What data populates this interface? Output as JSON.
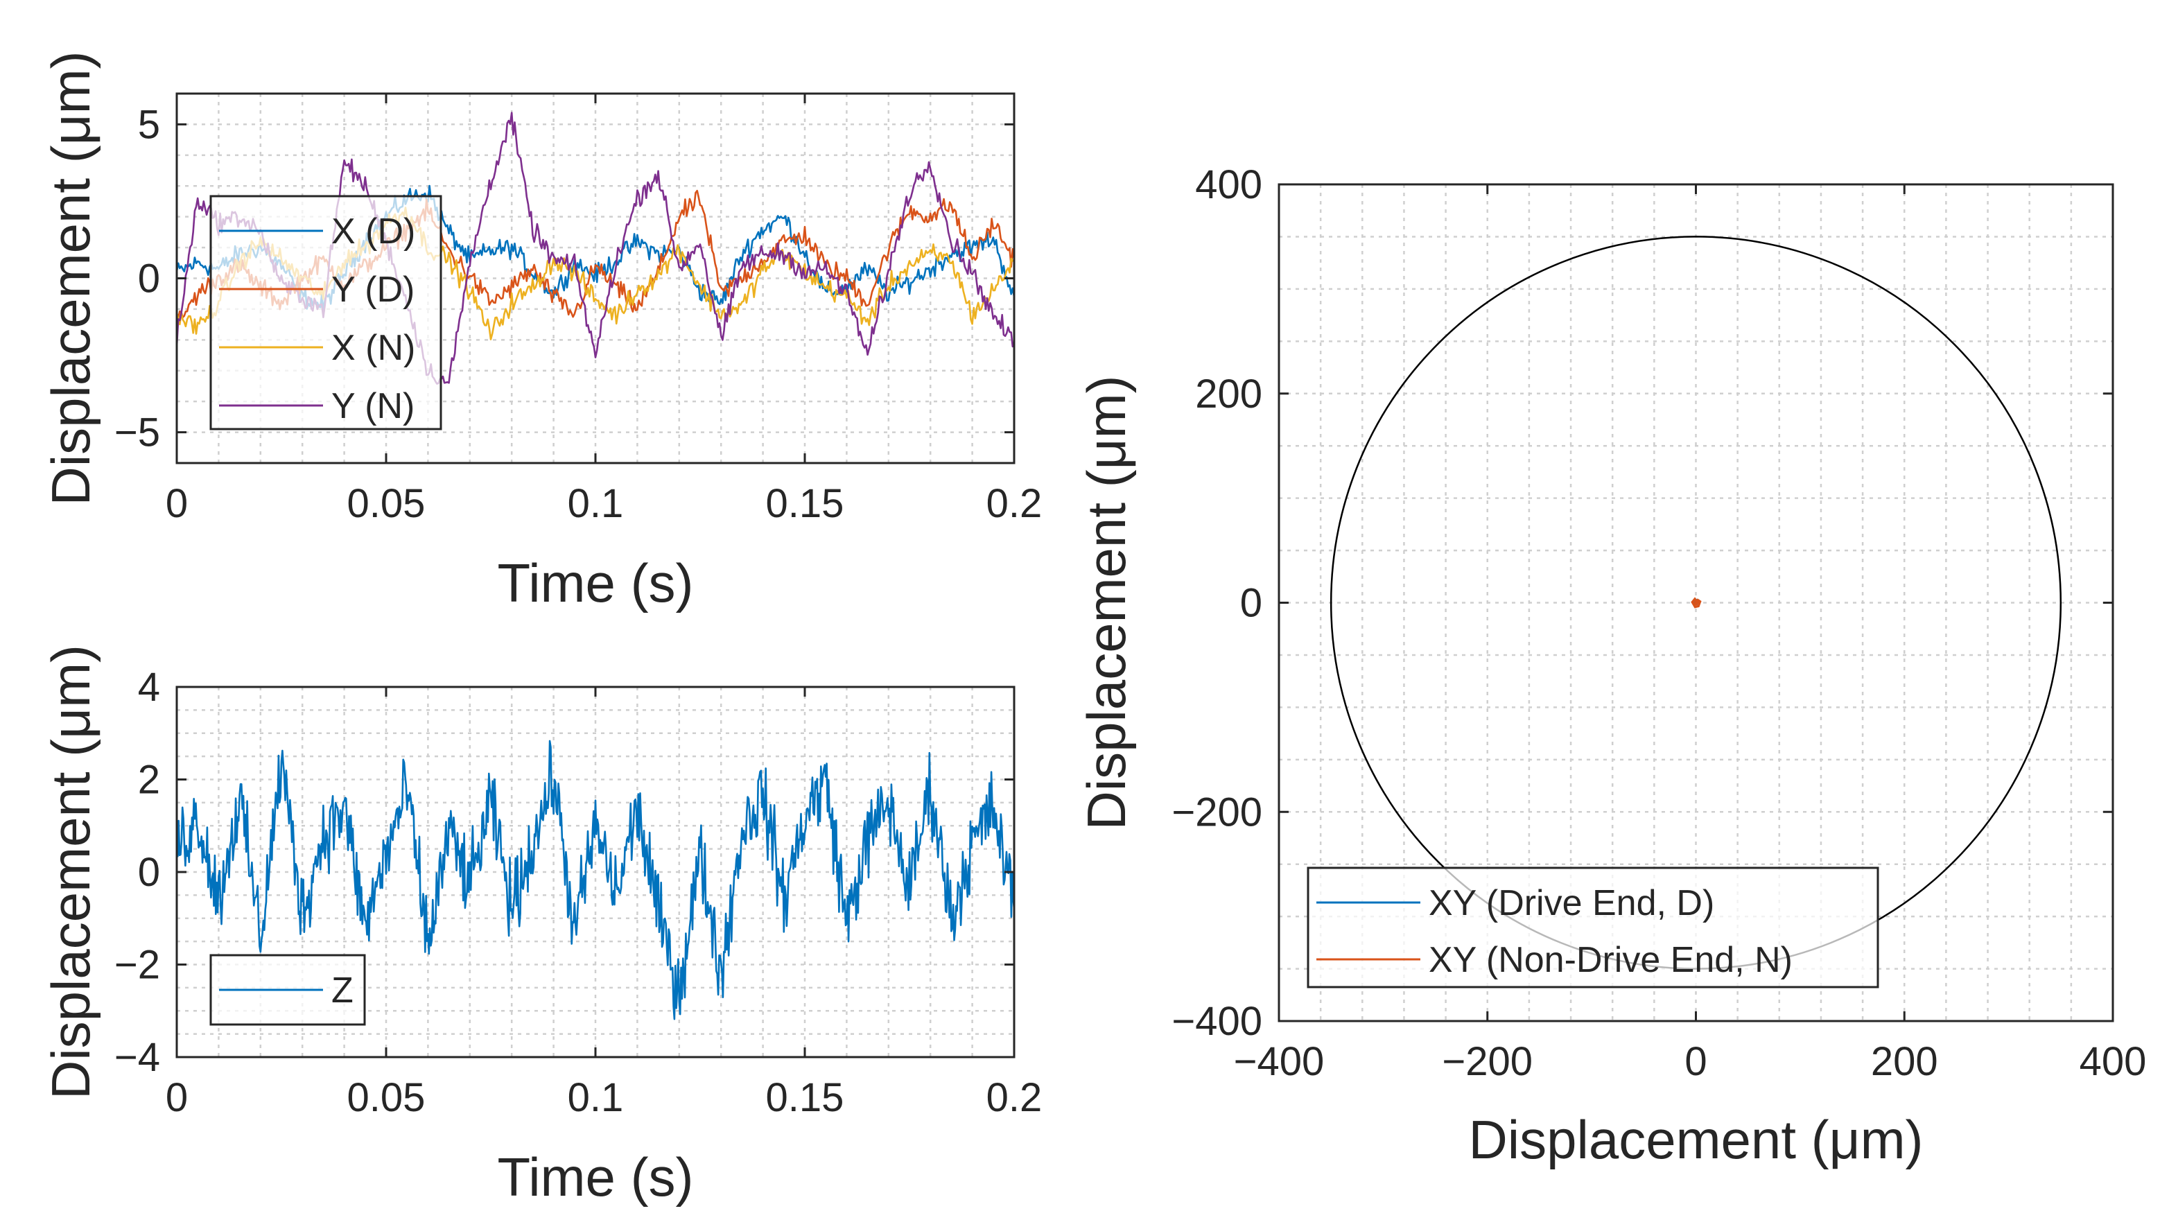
{
  "chart_data": [
    {
      "type": "line",
      "id": "radial-displacement",
      "xlabel": "Time (s)",
      "ylabel": "Displacement (μm)",
      "xlim": [
        0,
        0.2
      ],
      "ylim": [
        -6,
        6
      ],
      "xticks": [
        0,
        0.05,
        0.1,
        0.15,
        0.2
      ],
      "xticklabels": [
        "0",
        "0.05",
        "0.1",
        "0.15",
        "0.2"
      ],
      "yticks": [
        -5,
        0,
        5
      ],
      "yticklabels": [
        "−5",
        "0",
        "5"
      ],
      "grid": true,
      "legend_position": "top-left",
      "x": [
        0,
        0.005,
        0.01,
        0.015,
        0.02,
        0.025,
        0.03,
        0.035,
        0.04,
        0.045,
        0.05,
        0.055,
        0.06,
        0.065,
        0.07,
        0.075,
        0.08,
        0.085,
        0.09,
        0.095,
        0.1,
        0.105,
        0.11,
        0.115,
        0.12,
        0.125,
        0.13,
        0.135,
        0.14,
        0.145,
        0.15,
        0.155,
        0.16,
        0.165,
        0.17,
        0.175,
        0.18,
        0.185,
        0.19,
        0.195,
        0.2
      ],
      "series": [
        {
          "name": "X (D)",
          "color": "#0072BD",
          "values": [
            0.2,
            0.5,
            0.3,
            0.8,
            1.0,
            0.4,
            -0.6,
            -0.9,
            0.2,
            1.2,
            2.0,
            2.6,
            2.8,
            1.5,
            0.6,
            0.9,
            1.0,
            0.2,
            -0.5,
            0.5,
            0.1,
            0.6,
            1.2,
            0.8,
            0.9,
            -0.4,
            -0.8,
            0.8,
            1.6,
            2.0,
            0.8,
            -0.5,
            -0.3,
            0.3,
            -0.5,
            -0.1,
            0.3,
            0.8,
            1.0,
            1.3,
            -0.6
          ]
        },
        {
          "name": "Y (D)",
          "color": "#D95319",
          "values": [
            -1.5,
            -0.5,
            0.0,
            0.4,
            -0.3,
            -0.8,
            0.0,
            0.6,
            -0.2,
            0.4,
            1.0,
            1.6,
            2.2,
            0.9,
            0.1,
            -0.8,
            -0.3,
            0.3,
            -0.6,
            -1.2,
            0.4,
            -0.3,
            -1.0,
            0.2,
            2.0,
            2.6,
            -0.5,
            0.0,
            0.6,
            1.2,
            1.4,
            0.4,
            0.0,
            -0.8,
            1.0,
            2.2,
            2.0,
            2.4,
            0.6,
            1.8,
            0.6
          ]
        },
        {
          "name": "X (N)",
          "color": "#EDB120",
          "values": [
            -1.2,
            -1.6,
            -0.8,
            0.5,
            1.2,
            0.6,
            0.0,
            -0.6,
            0.6,
            1.0,
            1.8,
            2.2,
            1.0,
            0.6,
            -0.4,
            -1.8,
            -0.8,
            -0.3,
            0.6,
            0.2,
            -0.7,
            -1.2,
            -0.4,
            0.1,
            1.0,
            -0.3,
            -1.2,
            -0.9,
            0.3,
            0.8,
            0.2,
            -0.3,
            -0.6,
            -1.4,
            -0.2,
            0.4,
            0.8,
            0.6,
            -1.2,
            -0.4,
            0.6
          ]
        },
        {
          "name": "Y (N)",
          "color": "#7E2F8E",
          "values": [
            -2.0,
            2.6,
            1.8,
            2.0,
            1.5,
            -0.2,
            -0.6,
            -1.0,
            3.8,
            3.0,
            1.2,
            -0.8,
            -3.0,
            -3.4,
            0.5,
            3.2,
            5.2,
            1.6,
            0.6,
            0.4,
            -2.5,
            0.6,
            2.6,
            3.4,
            0.3,
            1.2,
            -2.0,
            0.4,
            0.8,
            0.8,
            0.2,
            0.3,
            -0.5,
            -2.5,
            0.2,
            2.8,
            3.8,
            1.2,
            0.2,
            -1.2,
            -2.1
          ]
        }
      ]
    },
    {
      "type": "line",
      "id": "axial-displacement",
      "xlabel": "Time (s)",
      "ylabel": "Displacement (μm)",
      "xlim": [
        0,
        0.2
      ],
      "ylim": [
        -4,
        4
      ],
      "xticks": [
        0,
        0.05,
        0.1,
        0.15,
        0.2
      ],
      "xticklabels": [
        "0",
        "0.05",
        "0.1",
        "0.15",
        "0.2"
      ],
      "yticks": [
        -4,
        -2,
        0,
        2,
        4
      ],
      "yticklabels": [
        "−4",
        "−2",
        "0",
        "2",
        "4"
      ],
      "grid": true,
      "legend_position": "bottom-left",
      "x": [
        0,
        0.005,
        0.01,
        0.015,
        0.02,
        0.025,
        0.03,
        0.035,
        0.04,
        0.045,
        0.05,
        0.055,
        0.06,
        0.065,
        0.07,
        0.075,
        0.08,
        0.085,
        0.09,
        0.095,
        0.1,
        0.105,
        0.11,
        0.115,
        0.12,
        0.125,
        0.13,
        0.135,
        0.14,
        0.145,
        0.15,
        0.155,
        0.16,
        0.165,
        0.17,
        0.175,
        0.18,
        0.185,
        0.19,
        0.195,
        0.2
      ],
      "series": [
        {
          "name": "Z",
          "color": "#0072BD",
          "values": [
            0.5,
            1.2,
            -0.6,
            1.6,
            -1.4,
            2.4,
            -0.9,
            0.8,
            1.4,
            -1.2,
            0.4,
            1.8,
            -1.6,
            0.9,
            -0.3,
            1.5,
            -0.8,
            0.6,
            2.1,
            -1.3,
            1.0,
            -0.5,
            1.4,
            -0.9,
            -2.6,
            0.4,
            -2.2,
            0.9,
            1.7,
            -0.6,
            1.2,
            2.0,
            -1.1,
            0.7,
            1.5,
            -0.4,
            1.9,
            -1.0,
            0.6,
            1.4,
            -0.8
          ]
        }
      ]
    },
    {
      "type": "line",
      "id": "orbit",
      "xlabel": "Displacement (μm)",
      "ylabel": "Displacement (μm)",
      "xlim": [
        -400,
        400
      ],
      "ylim": [
        -400,
        400
      ],
      "xticks": [
        -400,
        -200,
        0,
        200,
        400
      ],
      "xticklabels": [
        "−400",
        "−200",
        "0",
        "200",
        "400"
      ],
      "yticks": [
        -400,
        -200,
        0,
        200,
        400
      ],
      "yticklabels": [
        "−400",
        "−200",
        "0",
        "200",
        "400"
      ],
      "grid": true,
      "legend_position": "bottom-left",
      "clearance_circle": {
        "color": "#000000",
        "radius": 350
      },
      "series": [
        {
          "name": "XY (Drive End, D)",
          "color": "#0072BD",
          "x": [
            0.6,
            2.8,
            0.4,
            -1.5,
            0.8,
            1.8,
            -0.9,
            0.6
          ],
          "y": [
            -0.5,
            0.8,
            2.6,
            -0.4,
            -1.2,
            1.4,
            0.3,
            -0.5
          ]
        },
        {
          "name": "XY (Non-Drive End, N)",
          "color": "#D95319",
          "x": [
            -1.2,
            1.8,
            4.2,
            2.5,
            -0.8,
            -3.6,
            -1.0,
            1.6,
            -1.2
          ],
          "y": [
            -2.0,
            2.8,
            1.2,
            -3.4,
            -4.2,
            0.6,
            3.8,
            0.4,
            -2.0
          ]
        }
      ]
    }
  ]
}
